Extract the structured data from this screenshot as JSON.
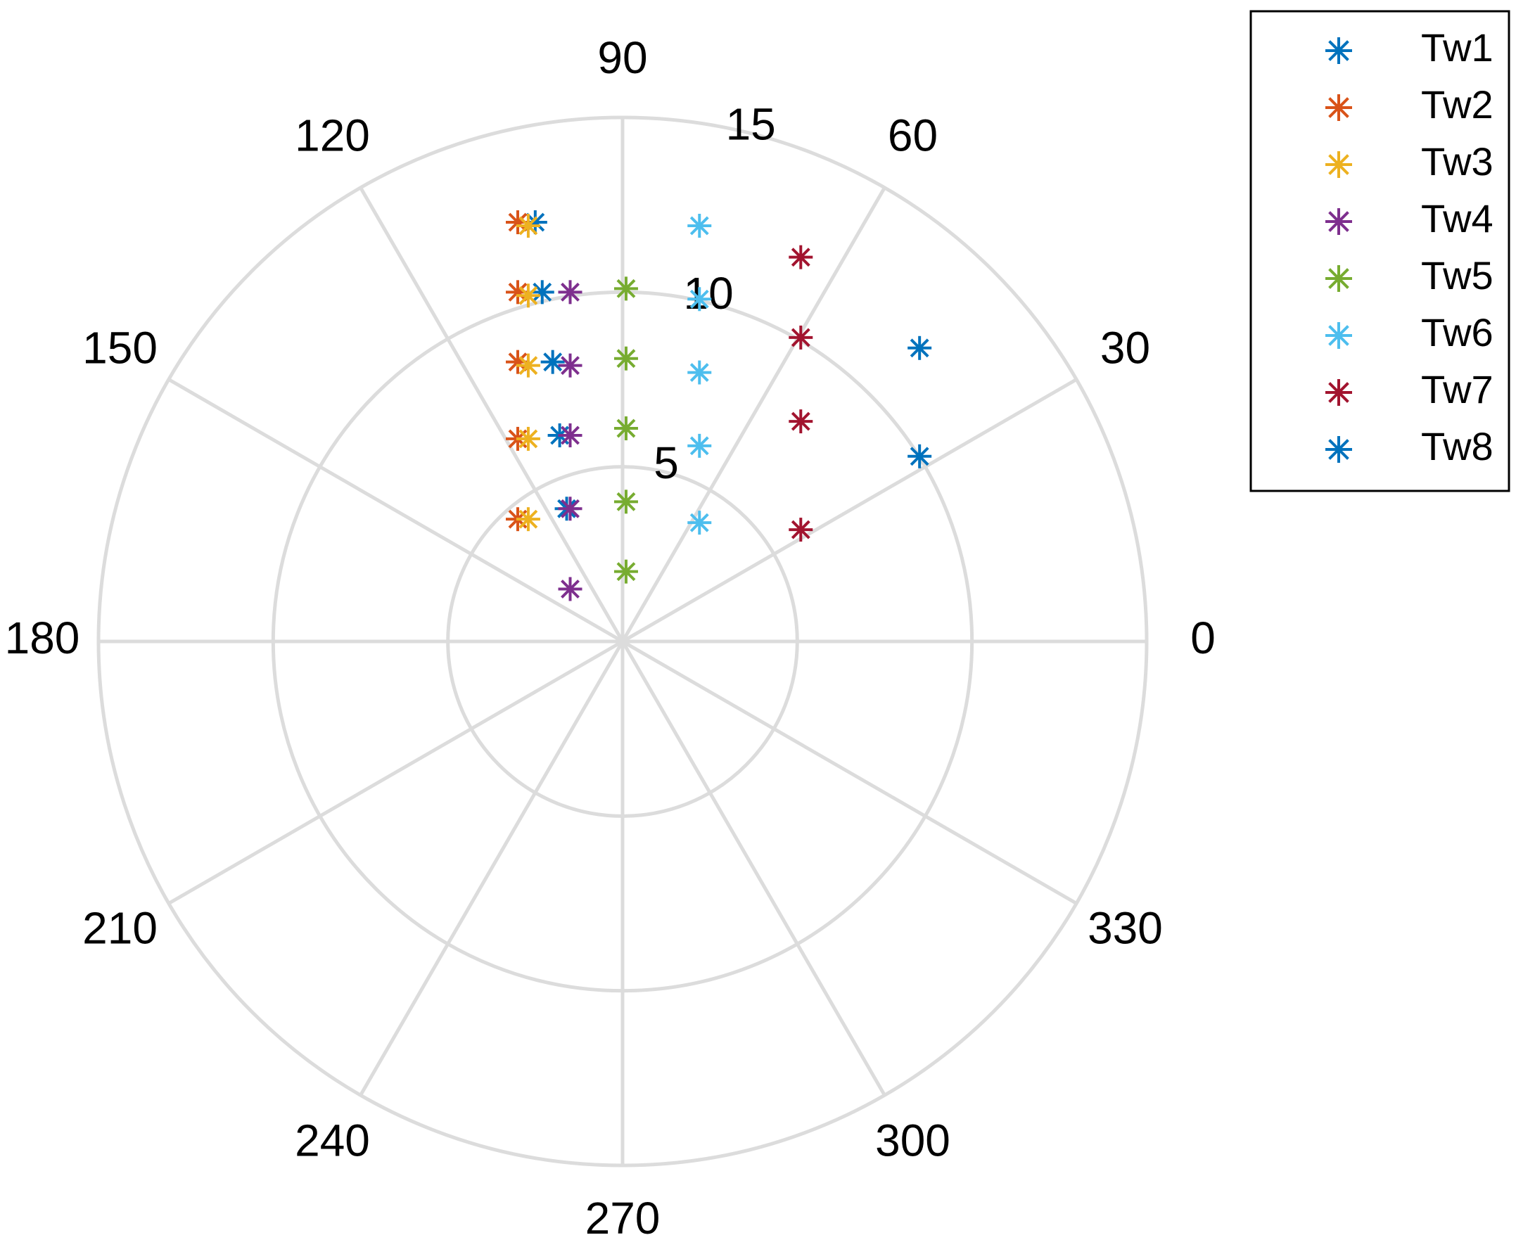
{
  "chart_data": {
    "type": "scatter",
    "coordinate_system": "polar",
    "theta_unit": "degrees",
    "r_range": [
      0,
      15
    ],
    "r_ticks": [
      5,
      10,
      15
    ],
    "r_tick_labels": [
      "5",
      "10",
      "15"
    ],
    "theta_ticks": [
      0,
      30,
      60,
      90,
      120,
      150,
      180,
      210,
      240,
      270,
      300,
      330
    ],
    "theta_tick_labels": [
      "0",
      "30",
      "60",
      "90",
      "120",
      "150",
      "180",
      "210",
      "240",
      "270",
      "300",
      "330"
    ],
    "grid": true,
    "marker": "asterisk",
    "legend_position": "top-right",
    "series": [
      {
        "name": "Tw1",
        "color": "#0072BD",
        "points": [
          [
            2.5,
            12.0
          ],
          [
            2.3,
            10.0
          ],
          [
            2.0,
            8.0
          ],
          [
            1.8,
            5.9
          ],
          [
            1.6,
            3.8
          ]
        ]
      },
      {
        "name": "Tw2",
        "color": "#D95319",
        "points": [
          [
            3.0,
            12.0
          ],
          [
            3.0,
            10.0
          ],
          [
            3.0,
            8.0
          ],
          [
            3.0,
            5.8
          ],
          [
            3.0,
            3.5
          ]
        ]
      },
      {
        "name": "Tw3",
        "color": "#EDB120",
        "points": [
          [
            2.7,
            11.9
          ],
          [
            2.7,
            9.9
          ],
          [
            2.7,
            7.9
          ],
          [
            2.7,
            5.8
          ],
          [
            2.7,
            3.5
          ]
        ]
      },
      {
        "name": "Tw4",
        "color": "#7E2F8E",
        "points": [
          [
            1.5,
            10.0
          ],
          [
            1.5,
            7.9
          ],
          [
            1.5,
            5.9
          ],
          [
            1.5,
            3.8
          ],
          [
            1.5,
            1.5
          ]
        ]
      },
      {
        "name": "Tw5",
        "color": "#77AC30",
        "points": [
          [
            0.1,
            10.1
          ],
          [
            0.1,
            8.1
          ],
          [
            0.1,
            6.1
          ],
          [
            0.1,
            4.0
          ],
          [
            0.1,
            2.0
          ]
        ]
      },
      {
        "name": "Tw6",
        "color": "#4DBEEE",
        "points": [
          [
            2.2,
            11.9
          ],
          [
            2.2,
            9.8
          ],
          [
            2.2,
            7.7
          ],
          [
            2.2,
            5.6
          ],
          [
            2.2,
            3.4
          ]
        ]
      },
      {
        "name": "Tw7",
        "color": "#A2142F",
        "points": [
          [
            5.1,
            11.0
          ],
          [
            5.1,
            8.7
          ],
          [
            5.1,
            6.3
          ],
          [
            5.1,
            3.2
          ]
        ]
      },
      {
        "name": "Tw8",
        "color": "#0072BD",
        "points": [
          [
            8.5,
            8.4
          ],
          [
            8.5,
            5.3
          ]
        ]
      }
    ]
  }
}
